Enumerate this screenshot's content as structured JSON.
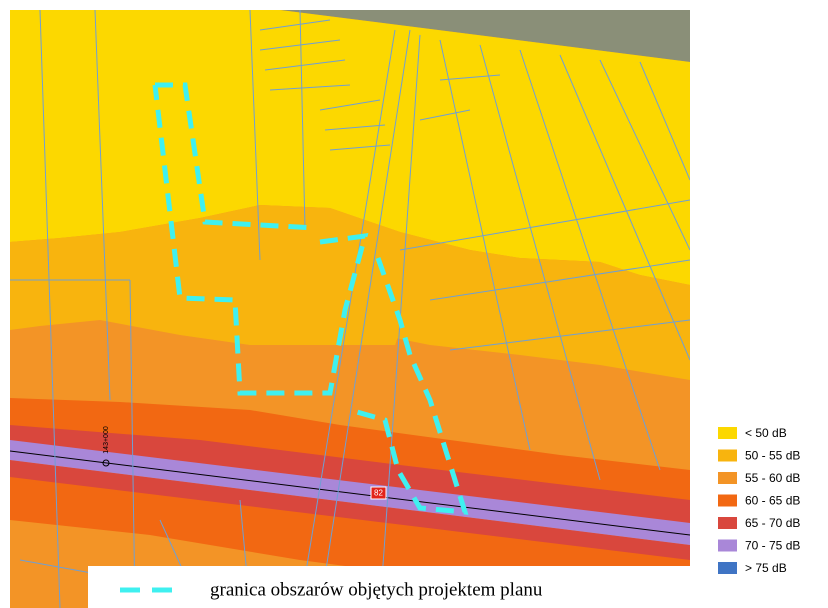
{
  "legend": [
    {
      "label": "< 50 dB",
      "color": "#fcd800"
    },
    {
      "label": "50 - 55 dB",
      "color": "#f8b40e"
    },
    {
      "label": "55 - 60 dB",
      "color": "#f39426"
    },
    {
      "label": "60 - 65 dB",
      "color": "#f26812"
    },
    {
      "label": "65 - 70 dB",
      "color": "#d9473d"
    },
    {
      "label": "70 - 75 dB",
      "color": "#a987d8"
    },
    {
      "label": "> 75 dB",
      "color": "#3f74c4"
    }
  ],
  "boundary_note": "granica obszarów objętych projektem planu",
  "road_label": "82",
  "chainage_label": "143+000"
}
